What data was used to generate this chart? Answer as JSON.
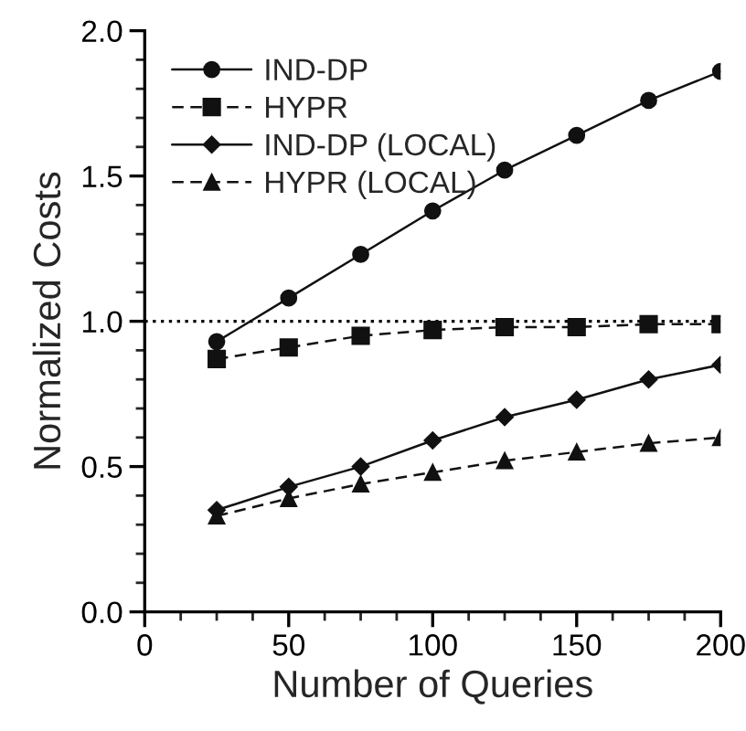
{
  "chart_data": {
    "type": "line",
    "xlabel": "Number of Queries",
    "ylabel": "Normalized Costs",
    "x": [
      25,
      50,
      75,
      100,
      125,
      150,
      175,
      200
    ],
    "series": [
      {
        "name": "IND-DP",
        "color": "#111111",
        "marker": "circle",
        "line_style": "solid",
        "values": [
          0.93,
          1.08,
          1.23,
          1.38,
          1.52,
          1.64,
          1.76,
          1.86
        ]
      },
      {
        "name": "HYPR",
        "color": "#111111",
        "marker": "square",
        "line_style": "dashed",
        "values": [
          0.87,
          0.91,
          0.95,
          0.97,
          0.98,
          0.98,
          0.99,
          0.99
        ]
      },
      {
        "name": "IND-DP (LOCAL)",
        "color": "#111111",
        "marker": "diamond",
        "line_style": "solid",
        "values": [
          0.35,
          0.43,
          0.5,
          0.59,
          0.67,
          0.73,
          0.8,
          0.85
        ]
      },
      {
        "name": "HYPR (LOCAL)",
        "color": "#111111",
        "marker": "triangle",
        "line_style": "dashed",
        "values": [
          0.33,
          0.39,
          0.44,
          0.48,
          0.52,
          0.55,
          0.58,
          0.6
        ]
      }
    ],
    "xlim": [
      0,
      200
    ],
    "xticks": [
      0,
      {
        "value": 12.5,
        "label": null
      },
      {
        "value": 25,
        "label": null
      },
      {
        "value": 37.5,
        "label": null
      },
      50,
      {
        "value": 62.5,
        "label": null
      },
      {
        "value": 75,
        "label": null
      },
      {
        "value": 87.5,
        "label": null
      },
      100,
      {
        "value": 112.5,
        "label": null
      },
      {
        "value": 125,
        "label": null
      },
      {
        "value": 137.5,
        "label": null
      },
      150,
      {
        "value": 162.5,
        "label": null
      },
      {
        "value": 175,
        "label": null
      },
      {
        "value": 187.5,
        "label": null
      },
      200
    ],
    "ylim": [
      0,
      2.0
    ],
    "yticks": [
      {
        "value": 0,
        "label": "0.0"
      },
      {
        "value": 0.1,
        "label": null
      },
      {
        "value": 0.2,
        "label": null
      },
      {
        "value": 0.3,
        "label": null
      },
      {
        "value": 0.4,
        "label": null
      },
      {
        "value": 0.5,
        "label": "0.5"
      },
      {
        "value": 0.6,
        "label": null
      },
      {
        "value": 0.7,
        "label": null
      },
      {
        "value": 0.8,
        "label": null
      },
      {
        "value": 0.9,
        "label": null
      },
      {
        "value": 1.0,
        "label": "1.0"
      },
      {
        "value": 1.1,
        "label": null
      },
      {
        "value": 1.2,
        "label": null
      },
      {
        "value": 1.3,
        "label": null
      },
      {
        "value": 1.4,
        "label": null
      },
      {
        "value": 1.5,
        "label": "1.5"
      },
      {
        "value": 1.6,
        "label": null
      },
      {
        "value": 1.7,
        "label": null
      },
      {
        "value": 1.8,
        "label": null
      },
      {
        "value": 1.9,
        "label": null
      },
      {
        "value": 2.0,
        "label": "2.0"
      }
    ],
    "ref_lines": [
      {
        "axis": "y",
        "value": 1.0,
        "color": "#000000",
        "line_style": "dotted"
      }
    ],
    "legend": "top left",
    "grid": false
  }
}
